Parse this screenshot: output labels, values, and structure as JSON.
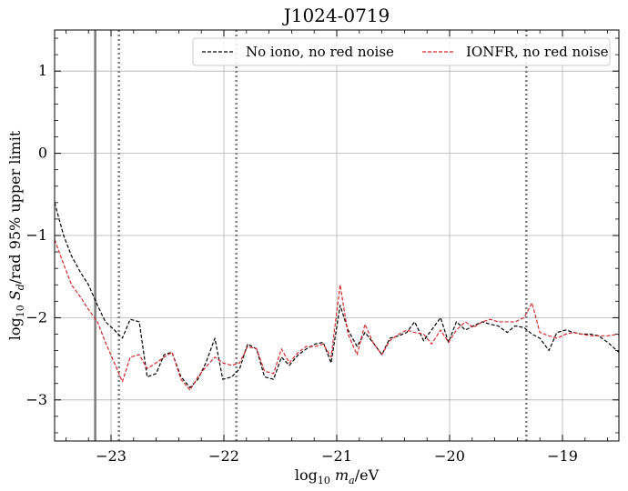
{
  "chart_data": {
    "type": "line",
    "title": "J1024-0719",
    "xlabel": "log10 ma/eV",
    "ylabel": "log10 Sd/rad 95% upper limit",
    "xlim": [
      -23.5,
      -18.5
    ],
    "ylim": [
      -3.5,
      1.5
    ],
    "x_ticks": [
      -23,
      -22,
      -21,
      -20,
      -19
    ],
    "x_tick_labels": [
      "−23",
      "−22",
      "−21",
      "−20",
      "−19"
    ],
    "y_ticks": [
      -3,
      -2,
      -1,
      0,
      1
    ],
    "y_tick_labels": [
      "−3",
      "−2",
      "−1",
      "0",
      "1"
    ],
    "grid": true,
    "legend": {
      "placement": "top-right",
      "columns": 2
    },
    "vlines": [
      {
        "x": -23.14,
        "style": "solid",
        "color": "#808080"
      },
      {
        "x": -22.93,
        "style": "dotted",
        "color": "#808080"
      },
      {
        "x": -21.89,
        "style": "dotted",
        "color": "#808080"
      },
      {
        "x": -19.32,
        "style": "dotted",
        "color": "#808080"
      }
    ],
    "series": [
      {
        "name": "No iono, no red noise",
        "color": "#000000",
        "dash": "dashed",
        "x": [
          -23.5,
          -23.42,
          -23.35,
          -23.27,
          -23.2,
          -23.12,
          -23.05,
          -22.97,
          -22.9,
          -22.83,
          -22.75,
          -22.68,
          -22.6,
          -22.53,
          -22.46,
          -22.38,
          -22.3,
          -22.23,
          -22.16,
          -22.08,
          -22.01,
          -21.93,
          -21.86,
          -21.79,
          -21.71,
          -21.64,
          -21.56,
          -21.49,
          -21.42,
          -21.34,
          -21.27,
          -21.19,
          -21.12,
          -21.05,
          -20.97,
          -20.9,
          -20.82,
          -20.75,
          -20.68,
          -20.6,
          -20.53,
          -20.45,
          -20.38,
          -20.31,
          -20.23,
          -20.16,
          -20.08,
          -20.01,
          -19.94,
          -19.86,
          -19.79,
          -19.71,
          -19.64,
          -19.57,
          -19.49,
          -19.42,
          -19.34,
          -19.27,
          -19.2,
          -19.12,
          -19.05,
          -18.97,
          -18.9,
          -18.83,
          -18.75,
          -18.68,
          -18.6,
          -18.5
        ],
        "y": [
          -0.6,
          -1.0,
          -1.25,
          -1.45,
          -1.6,
          -1.85,
          -2.05,
          -2.15,
          -2.25,
          -2.02,
          -2.05,
          -2.72,
          -2.68,
          -2.45,
          -2.42,
          -2.72,
          -2.85,
          -2.75,
          -2.55,
          -2.25,
          -2.75,
          -2.72,
          -2.62,
          -2.32,
          -2.38,
          -2.72,
          -2.75,
          -2.48,
          -2.58,
          -2.45,
          -2.38,
          -2.32,
          -2.3,
          -2.55,
          -1.85,
          -2.15,
          -2.35,
          -2.18,
          -2.3,
          -2.45,
          -2.25,
          -2.22,
          -2.18,
          -2.05,
          -2.28,
          -2.15,
          -2.0,
          -2.3,
          -2.05,
          -2.15,
          -2.1,
          -2.05,
          -2.08,
          -2.1,
          -2.18,
          -2.1,
          -2.12,
          -2.2,
          -2.25,
          -2.4,
          -2.18,
          -2.15,
          -2.18,
          -2.2,
          -2.2,
          -2.22,
          -2.3,
          -2.42
        ]
      },
      {
        "name": "IONFR, no red noise",
        "color": "#d62728",
        "dash": "dashed",
        "x": [
          -23.5,
          -23.42,
          -23.35,
          -23.27,
          -23.2,
          -23.12,
          -23.05,
          -22.97,
          -22.9,
          -22.83,
          -22.75,
          -22.68,
          -22.6,
          -22.53,
          -22.46,
          -22.38,
          -22.3,
          -22.23,
          -22.16,
          -22.08,
          -22.01,
          -21.93,
          -21.86,
          -21.79,
          -21.71,
          -21.64,
          -21.56,
          -21.49,
          -21.42,
          -21.34,
          -21.27,
          -21.19,
          -21.12,
          -21.05,
          -20.97,
          -20.9,
          -20.82,
          -20.75,
          -20.68,
          -20.6,
          -20.53,
          -20.45,
          -20.38,
          -20.31,
          -20.23,
          -20.16,
          -20.08,
          -20.01,
          -19.94,
          -19.86,
          -19.79,
          -19.71,
          -19.64,
          -19.57,
          -19.49,
          -19.42,
          -19.34,
          -19.27,
          -19.2,
          -19.12,
          -19.05,
          -18.97,
          -18.9,
          -18.83,
          -18.75,
          -18.68,
          -18.6,
          -18.5
        ],
        "y": [
          -1.05,
          -1.35,
          -1.6,
          -1.75,
          -1.9,
          -2.05,
          -2.3,
          -2.55,
          -2.78,
          -2.48,
          -2.45,
          -2.62,
          -2.55,
          -2.48,
          -2.42,
          -2.75,
          -2.88,
          -2.72,
          -2.6,
          -2.48,
          -2.55,
          -2.58,
          -2.55,
          -2.35,
          -2.38,
          -2.65,
          -2.68,
          -2.38,
          -2.55,
          -2.42,
          -2.35,
          -2.35,
          -2.32,
          -2.48,
          -1.6,
          -2.2,
          -2.45,
          -2.08,
          -2.3,
          -2.45,
          -2.28,
          -2.2,
          -2.15,
          -2.18,
          -2.2,
          -2.32,
          -2.15,
          -2.3,
          -2.15,
          -2.05,
          -2.12,
          -2.05,
          -2.02,
          -2.05,
          -2.05,
          -2.05,
          -2.0,
          -1.82,
          -2.18,
          -2.22,
          -2.25,
          -2.2,
          -2.18,
          -2.2,
          -2.22,
          -2.22,
          -2.22,
          -2.2
        ]
      }
    ]
  }
}
